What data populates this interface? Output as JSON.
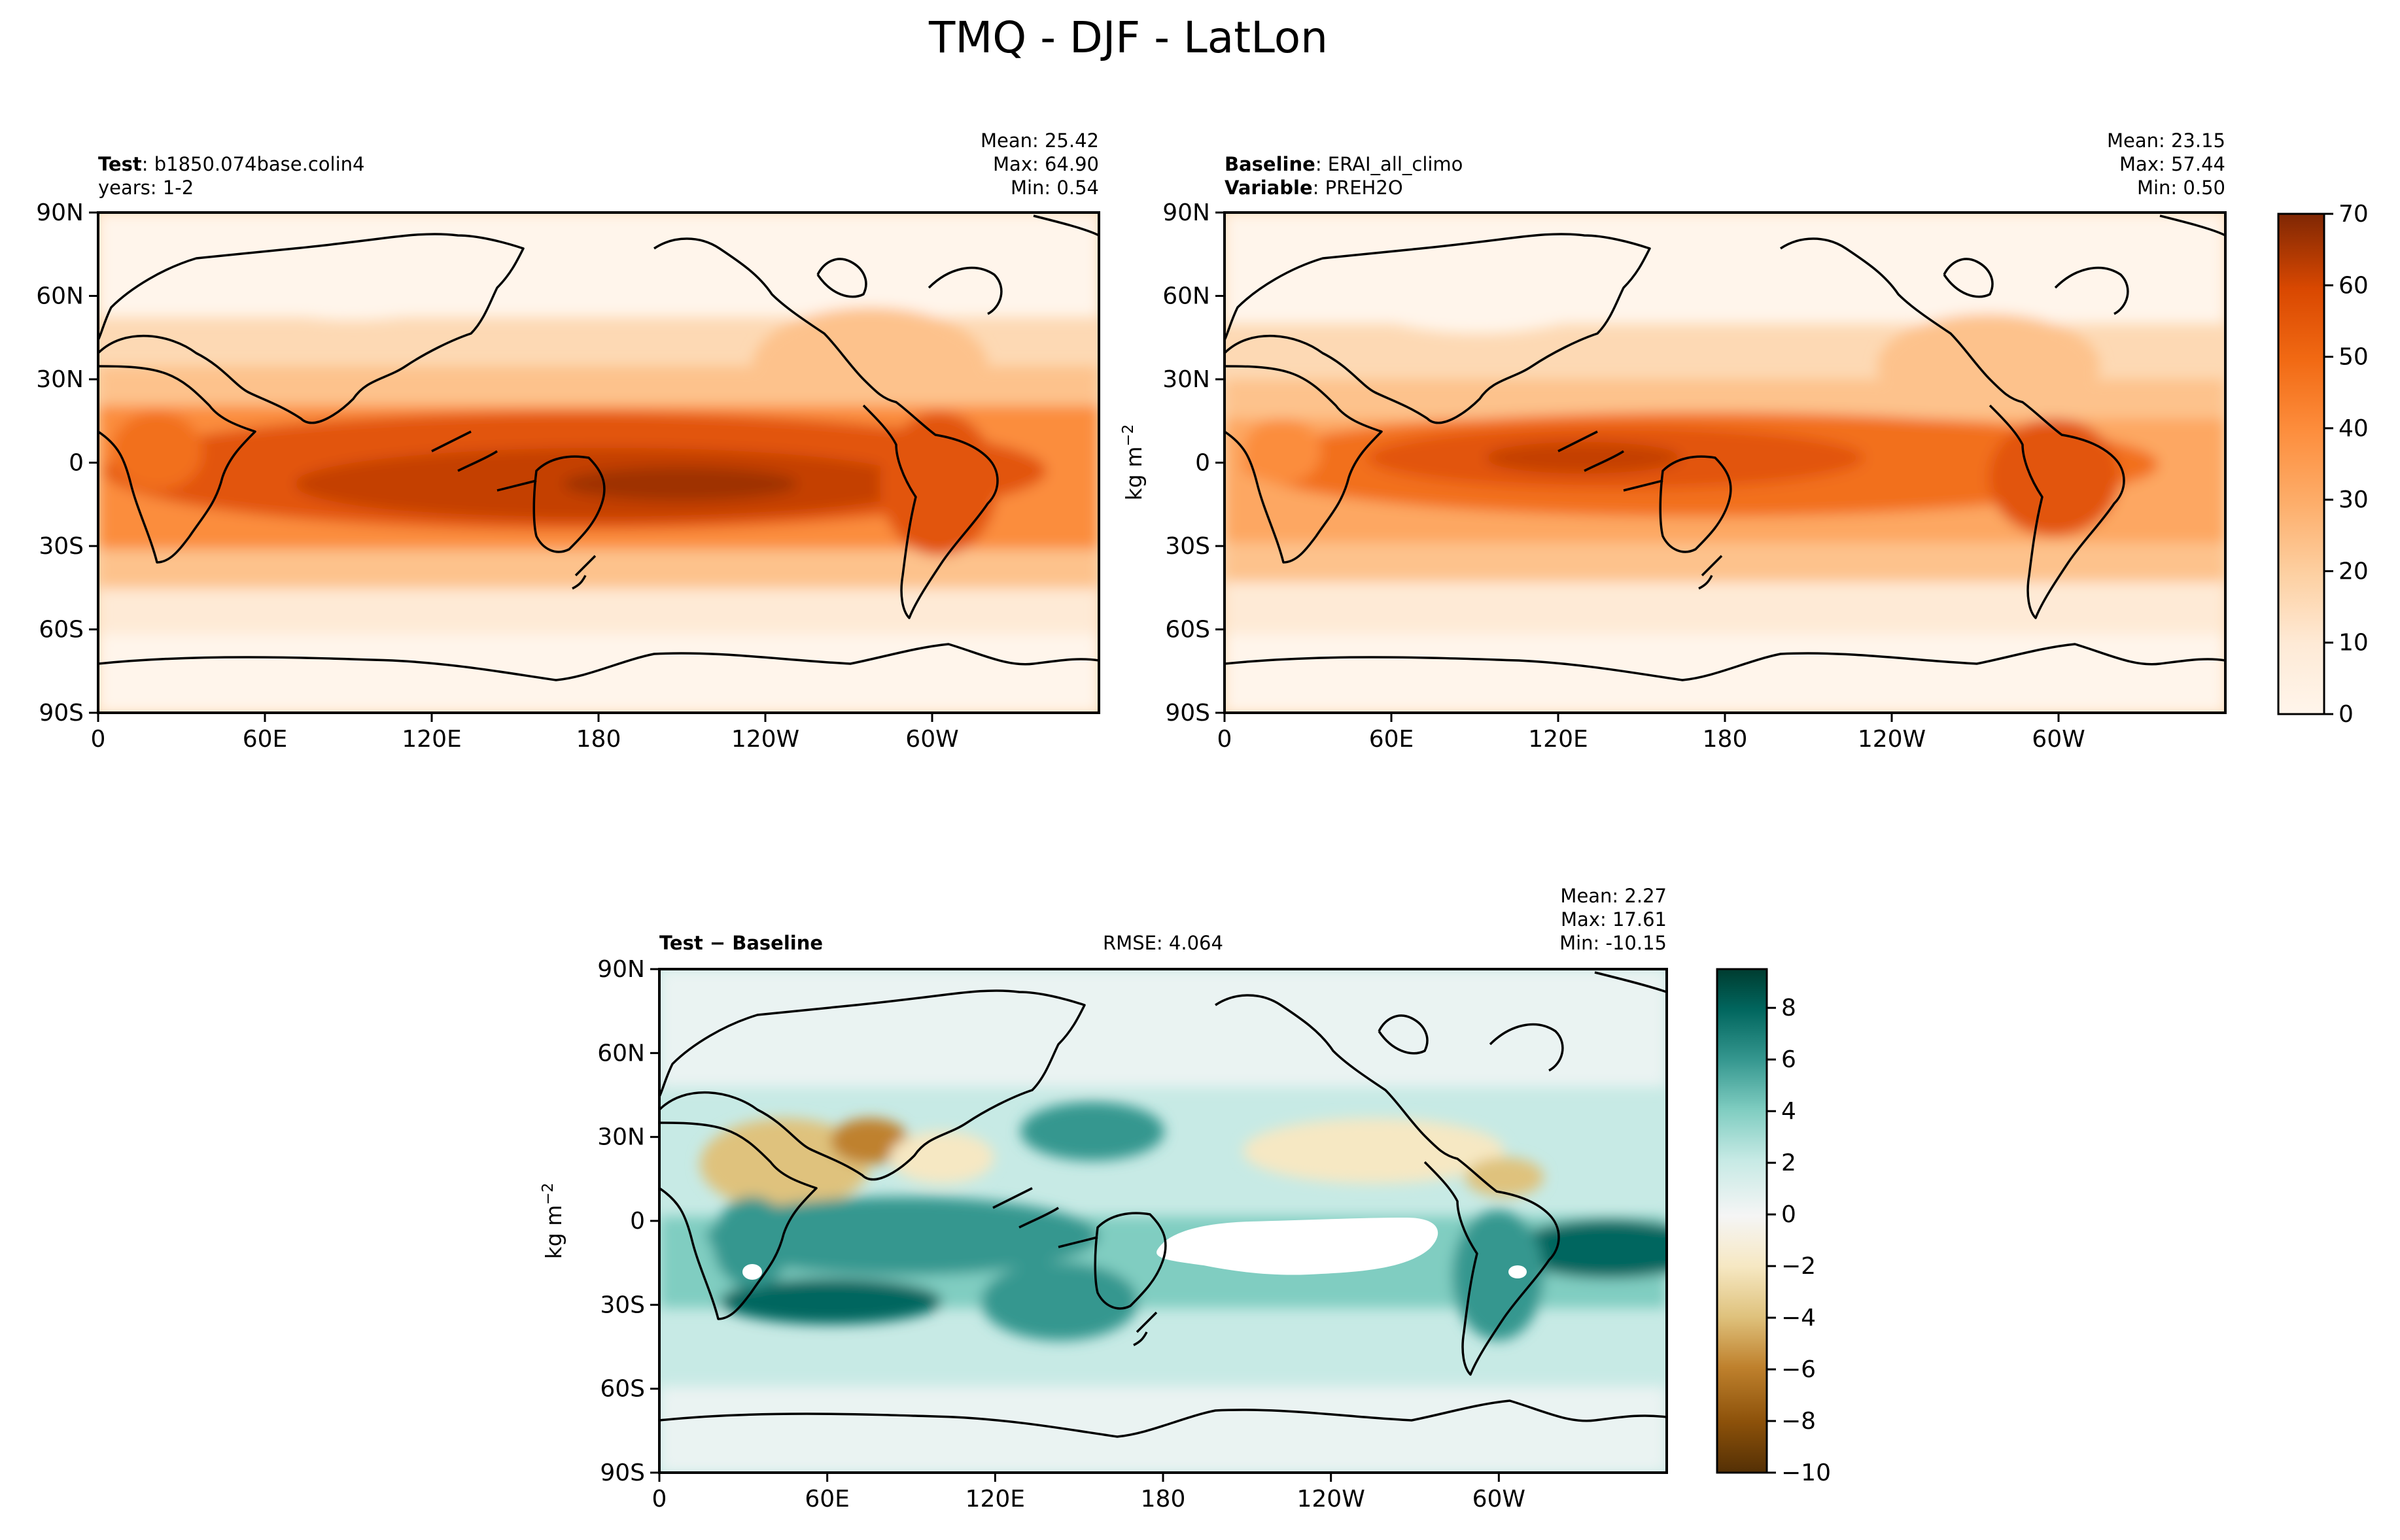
{
  "figure_title": "TMQ - DJF - LatLon",
  "colors": {
    "oranges": [
      "#fff5eb",
      "#feead6",
      "#fdd9b4",
      "#fdc28c",
      "#fda762",
      "#fb8d3d",
      "#f2701d",
      "#e25508",
      "#c44103",
      "#9f3303",
      "#7f2704"
    ],
    "brbg": [
      "#543005",
      "#8c510a",
      "#bf812d",
      "#dfc27d",
      "#f6e8c3",
      "#f5f5f5",
      "#c7eae5",
      "#80cdc1",
      "#35978f",
      "#01665e",
      "#003c30"
    ],
    "coast": "#000000",
    "nodata": "#ffffff"
  },
  "panels": {
    "test": {
      "label_bold": "Test",
      "label_rest": ": b1850.074base.colin4",
      "line2": "years: 1-2",
      "mean": "Mean: 25.42",
      "max": "Max: 64.90",
      "min": "Min:  0.54"
    },
    "baseline": {
      "label_bold": "Baseline",
      "label_rest": ": ERAI_all_climo",
      "line2_bold": "Variable",
      "line2_rest": ": PREH2O",
      "mean": "Mean: 23.15",
      "max": "Max: 57.44",
      "min": "Min:  0.50"
    },
    "diff": {
      "label": "Test − Baseline",
      "rmse": "RMSE: 4.064",
      "mean": "Mean:  2.27",
      "max": "Max: 17.61",
      "min": "Min: -10.15"
    }
  },
  "units_label": "kg m",
  "units_exp": "−2",
  "chart_data": [
    {
      "type": "heatmap",
      "name": "Test",
      "xlabels": [
        "0",
        "60E",
        "120E",
        "180",
        "120W",
        "60W"
      ],
      "x": [
        0,
        60,
        120,
        180,
        240,
        300
      ],
      "xlim": [
        0,
        360
      ],
      "ylabels": [
        "90N",
        "60N",
        "30N",
        "0",
        "30S",
        "60S",
        "90S"
      ],
      "y": [
        90,
        60,
        30,
        0,
        -30,
        -60,
        -90
      ],
      "ylim": [
        -90,
        90
      ],
      "stats": {
        "mean": 25.42,
        "max": 64.9,
        "min": 0.54
      }
    },
    {
      "type": "heatmap",
      "name": "Baseline",
      "xlabels": [
        "0",
        "60E",
        "120E",
        "180",
        "120W",
        "60W"
      ],
      "x": [
        0,
        60,
        120,
        180,
        240,
        300
      ],
      "xlim": [
        0,
        360
      ],
      "ylabels": [
        "90N",
        "60N",
        "30N",
        "0",
        "30S",
        "60S",
        "90S"
      ],
      "y": [
        90,
        60,
        30,
        0,
        -30,
        -60,
        -90
      ],
      "ylim": [
        -90,
        90
      ],
      "stats": {
        "mean": 23.15,
        "max": 57.44,
        "min": 0.5
      }
    },
    {
      "type": "heatmap",
      "name": "Test − Baseline",
      "xlabels": [
        "0",
        "60E",
        "120E",
        "180",
        "120W",
        "60W"
      ],
      "x": [
        0,
        60,
        120,
        180,
        240,
        300
      ],
      "xlim": [
        0,
        360
      ],
      "ylabels": [
        "90N",
        "60N",
        "30N",
        "0",
        "30S",
        "60S",
        "90S"
      ],
      "y": [
        90,
        60,
        30,
        0,
        -30,
        -60,
        -90
      ],
      "ylim": [
        -90,
        90
      ],
      "stats": {
        "mean": 2.27,
        "max": 17.61,
        "min": -10.15,
        "rmse": 4.064
      }
    }
  ],
  "colorbar_top": {
    "ticks": [
      0,
      10,
      20,
      30,
      40,
      50,
      60,
      70
    ],
    "tick_labels": [
      "0",
      "10",
      "20",
      "30",
      "40",
      "50",
      "60",
      "70"
    ],
    "range": [
      0,
      70
    ]
  },
  "colorbar_diff": {
    "ticks": [
      -10,
      -8,
      -6,
      -4,
      -2,
      0,
      2,
      4,
      6,
      8
    ],
    "tick_labels": [
      "−10",
      "−8",
      "−6",
      "−4",
      "−2",
      "0",
      "2",
      "4",
      "6",
      "8"
    ],
    "range": [
      -10,
      9.5
    ]
  }
}
